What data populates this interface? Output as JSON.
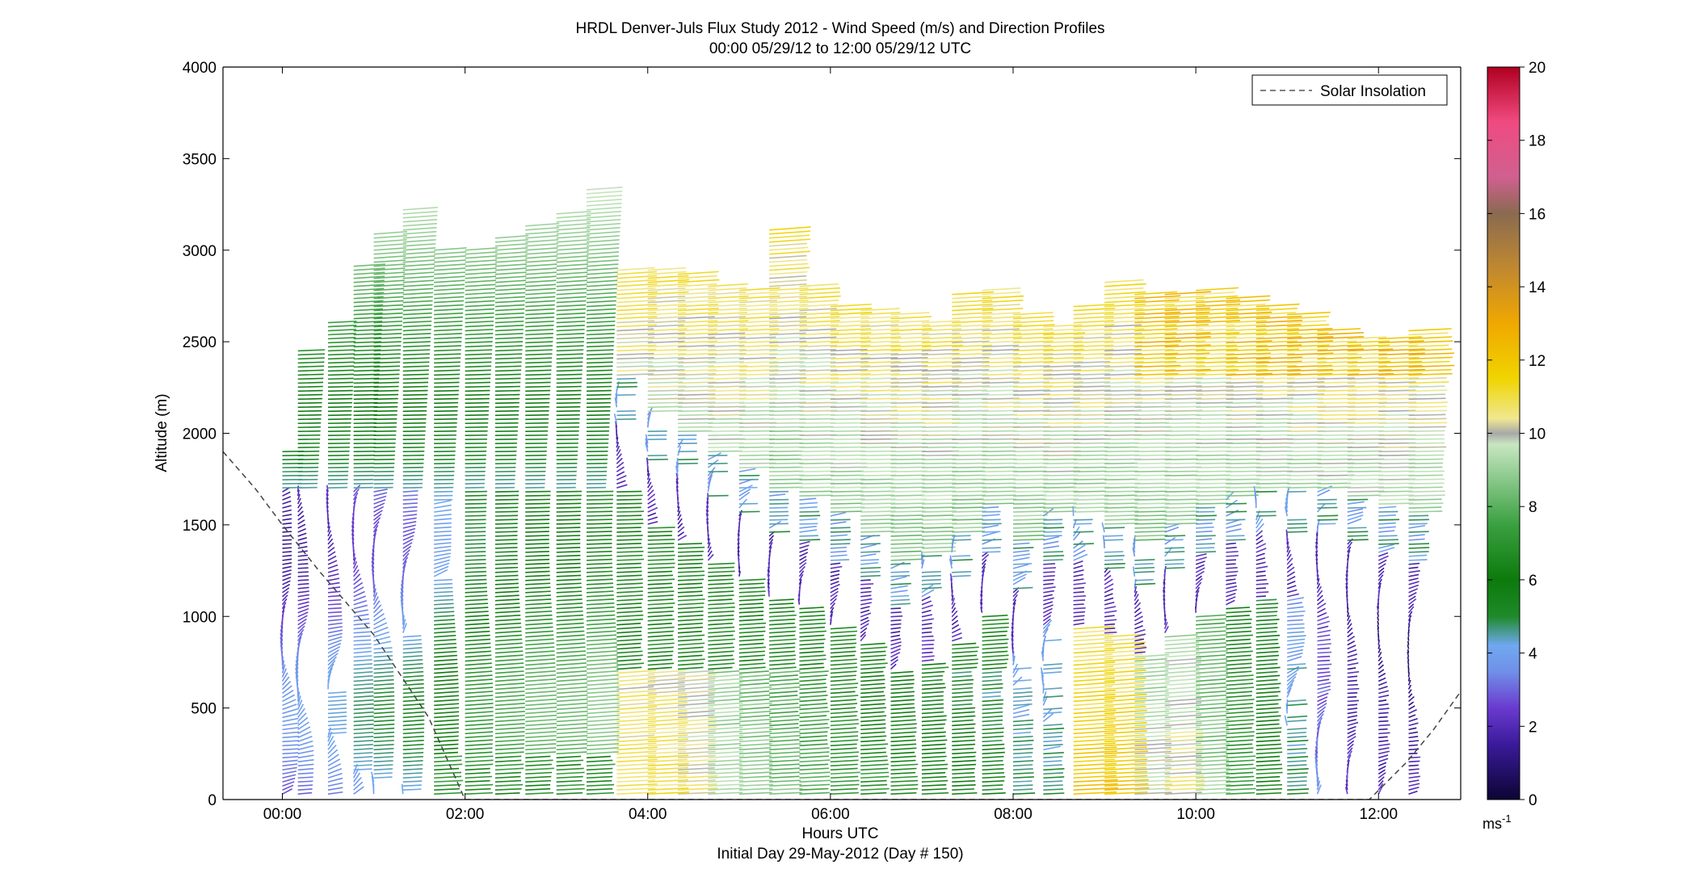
{
  "chart_data": {
    "type": "wind-profile-barbs",
    "title": "HRDL Denver-Juls Flux Study 2012 - Wind Speed (m/s) and Direction Profiles",
    "subtitle": "00:00 05/29/12 to 12:00 05/29/12  UTC",
    "xlabel": "Hours UTC",
    "footer": "Initial Day 29-May-2012 (Day # 150)",
    "ylabel": "Altitude (m)",
    "x_unit": "hours",
    "xlim": [
      -0.65,
      12.9
    ],
    "ylim": [
      0,
      4000
    ],
    "x_ticks": [
      0,
      2,
      4,
      6,
      8,
      10,
      12
    ],
    "x_tick_labels": [
      "00:00",
      "02:00",
      "04:00",
      "06:00",
      "08:00",
      "10:00",
      "12:00"
    ],
    "y_ticks": [
      0,
      500,
      1000,
      1500,
      2000,
      2500,
      3000,
      3500,
      4000
    ],
    "y_tick_labels": [
      "0",
      "500",
      "1000",
      "1500",
      "2000",
      "2500",
      "3000",
      "3500",
      "4000"
    ],
    "colorbar": {
      "range": [
        0,
        20
      ],
      "ticks": [
        0,
        2,
        4,
        6,
        8,
        10,
        12,
        14,
        16,
        18,
        20
      ],
      "tick_labels": [
        "0",
        "2",
        "4",
        "6",
        "8",
        "10",
        "12",
        "14",
        "16",
        "18",
        "20"
      ],
      "unit_label": "ms",
      "unit_exponent": "-1",
      "colormap": [
        [
          0,
          "#0c0433"
        ],
        [
          1.5,
          "#3a1a9a"
        ],
        [
          2.5,
          "#6a3ad0"
        ],
        [
          3.5,
          "#7090e8"
        ],
        [
          4.2,
          "#70a8f0"
        ],
        [
          5,
          "#1e8a2a"
        ],
        [
          6,
          "#0c7a0c"
        ],
        [
          7.5,
          "#3aa040"
        ],
        [
          9,
          "#9ad09a"
        ],
        [
          9.7,
          "#c8e6c0"
        ],
        [
          10,
          "#a8a8a8"
        ],
        [
          10.4,
          "#f0e890"
        ],
        [
          11.5,
          "#f0d400"
        ],
        [
          13,
          "#f0a800"
        ],
        [
          14.5,
          "#c08830"
        ],
        [
          16,
          "#8a6a50"
        ],
        [
          17,
          "#d06090"
        ],
        [
          18.5,
          "#f04a80"
        ],
        [
          20,
          "#b00020"
        ]
      ]
    },
    "legend": {
      "entries": [
        "Solar Insolation"
      ],
      "placement": "top-right"
    },
    "solar_insolation_line": {
      "style": "dashed",
      "x": [
        -0.65,
        -0.3,
        0,
        0.4,
        1.0,
        1.6,
        2.0,
        11.9,
        12.3,
        12.6,
        12.9
      ],
      "y": [
        1900,
        1700,
        1500,
        1250,
        900,
        450,
        0,
        0,
        200,
        380,
        590
      ]
    },
    "profiles": [
      {
        "t": 0.0,
        "top": 1900,
        "low_speed": 2.0,
        "shear_alt": 0
      },
      {
        "t": 0.17,
        "top": 2450,
        "low_speed": 2.2,
        "shear_alt": 0
      },
      {
        "t": 0.5,
        "top": 2620,
        "low_speed": 2.5,
        "shear_alt": 0
      },
      {
        "t": 0.78,
        "top": 2920,
        "low_speed": 3.0,
        "shear_alt": 0
      },
      {
        "t": 1.0,
        "top": 3100,
        "low_speed": 3.2,
        "shear_alt": 0
      },
      {
        "t": 1.32,
        "top": 3220,
        "low_speed": 3.4,
        "shear_alt": 0
      },
      {
        "t": 1.66,
        "top": 3000,
        "low_speed": 4.5,
        "shear_alt": 0
      },
      {
        "t": 2.0,
        "top": 3000,
        "low_speed": 5.5,
        "shear_alt": 0
      },
      {
        "t": 2.33,
        "top": 3080,
        "low_speed": 6.0,
        "shear_alt": 0
      },
      {
        "t": 2.66,
        "top": 3150,
        "low_speed": 6.5,
        "shear_alt": 0
      },
      {
        "t": 3.0,
        "top": 3200,
        "low_speed": 6.5,
        "shear_alt": 0
      },
      {
        "t": 3.33,
        "top": 3330,
        "low_speed": 7.0,
        "shear_alt": 1850
      },
      {
        "t": 3.66,
        "top": 2900,
        "low_speed": 11.0,
        "shear_alt": 1900
      },
      {
        "t": 4.0,
        "top": 2900,
        "low_speed": 11.0,
        "shear_alt": 1700
      },
      {
        "t": 4.33,
        "top": 2880,
        "low_speed": 10.5,
        "shear_alt": 1600
      },
      {
        "t": 4.66,
        "top": 2820,
        "low_speed": 9.5,
        "shear_alt": 1500
      },
      {
        "t": 5.0,
        "top": 2800,
        "low_speed": 9.0,
        "shear_alt": 1400
      },
      {
        "t": 5.33,
        "top": 3120,
        "low_speed": 8.5,
        "shear_alt": 1300
      },
      {
        "t": 5.66,
        "top": 2820,
        "low_speed": 8.0,
        "shear_alt": 1250
      },
      {
        "t": 6.0,
        "top": 2700,
        "low_speed": 7.5,
        "shear_alt": 1150
      },
      {
        "t": 6.33,
        "top": 2680,
        "low_speed": 7.0,
        "shear_alt": 1050
      },
      {
        "t": 6.66,
        "top": 2650,
        "low_speed": 6.8,
        "shear_alt": 900
      },
      {
        "t": 7.0,
        "top": 2620,
        "low_speed": 6.5,
        "shear_alt": 950
      },
      {
        "t": 7.33,
        "top": 2770,
        "low_speed": 6.0,
        "shear_alt": 1050
      },
      {
        "t": 7.66,
        "top": 2800,
        "low_speed": 5.5,
        "shear_alt": 1200
      },
      {
        "t": 8.0,
        "top": 2650,
        "low_speed": 5.0,
        "shear_alt": 1000
      },
      {
        "t": 8.33,
        "top": 2600,
        "low_speed": 5.0,
        "shear_alt": 1150
      },
      {
        "t": 8.66,
        "top": 2700,
        "low_speed": 12.0,
        "shear_alt": 1150
      },
      {
        "t": 9.0,
        "top": 2840,
        "low_speed": 12.0,
        "shear_alt": 1100
      },
      {
        "t": 9.33,
        "top": 2760,
        "low_speed": 10.0,
        "shear_alt": 1000
      },
      {
        "t": 9.66,
        "top": 2770,
        "low_speed": 10.5,
        "shear_alt": 1100
      },
      {
        "t": 10.0,
        "top": 2800,
        "low_speed": 9.0,
        "shear_alt": 1200
      },
      {
        "t": 10.33,
        "top": 2750,
        "low_speed": 7.5,
        "shear_alt": 1250
      },
      {
        "t": 10.66,
        "top": 2700,
        "low_speed": 6.5,
        "shear_alt": 1300
      },
      {
        "t": 11.0,
        "top": 2650,
        "low_speed": 5.0,
        "shear_alt": 1300
      },
      {
        "t": 11.33,
        "top": 2560,
        "low_speed": 3.5,
        "shear_alt": 1300
      },
      {
        "t": 11.66,
        "top": 2520,
        "low_speed": 2.5,
        "shear_alt": 1250
      },
      {
        "t": 12.0,
        "top": 2520,
        "low_speed": 2.2,
        "shear_alt": 1200
      },
      {
        "t": 12.33,
        "top": 2580,
        "low_speed": 2.0,
        "shear_alt": 1150
      }
    ]
  }
}
